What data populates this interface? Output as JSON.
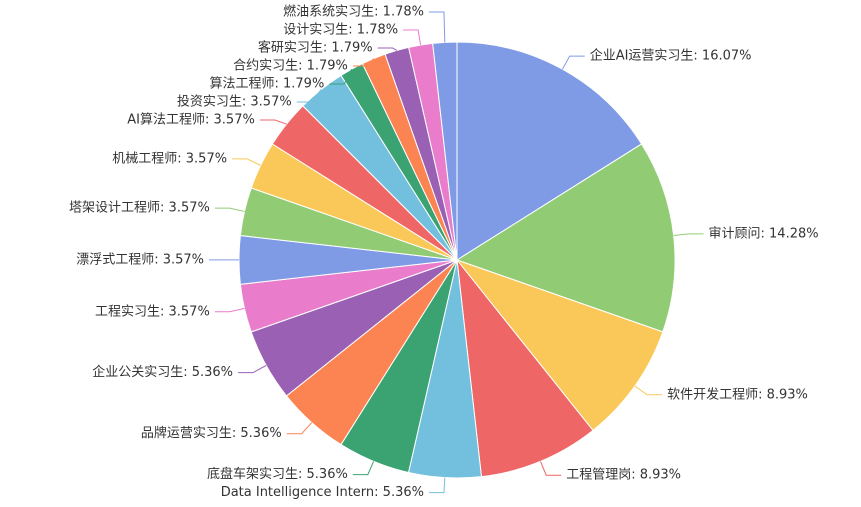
{
  "chart_data": {
    "type": "pie",
    "labels": [
      "企业AI运营实习生: 16.07%",
      "审计顾问: 14.28%",
      "软件开发工程师: 8.93%",
      "工程管理岗: 8.93%",
      "Data Intelligence Intern: 5.36%",
      "底盘车架实习生: 5.36%",
      "品牌运营实习生: 5.36%",
      "企业公关实习生: 5.36%",
      "工程实习生: 3.57%",
      "漂浮式工程师: 3.57%",
      "塔架设计工程师: 3.57%",
      "机械工程师: 3.57%",
      "AI算法工程师: 3.57%",
      "投资实习生: 3.57%",
      "算法工程师: 1.79%",
      "合约实习生: 1.79%",
      "客研实习生: 1.79%",
      "设计实习生: 1.78%",
      "燃油系统实习生: 1.78%"
    ],
    "values": [
      16.07,
      14.28,
      8.93,
      8.93,
      5.36,
      5.36,
      5.36,
      5.36,
      3.57,
      3.57,
      3.57,
      3.57,
      3.57,
      3.57,
      1.79,
      1.79,
      1.79,
      1.78,
      1.78
    ],
    "colors": [
      "#7f9be6",
      "#91cc75",
      "#fac858",
      "#ee6666",
      "#73c0de",
      "#3ba272",
      "#fc8452",
      "#9a60b4",
      "#ea7ccc",
      "#7f9be6",
      "#91cc75",
      "#fac858",
      "#ee6666",
      "#73c0de",
      "#3ba272",
      "#fc8452",
      "#9a60b4",
      "#ea7ccc",
      "#7f9be6"
    ]
  }
}
